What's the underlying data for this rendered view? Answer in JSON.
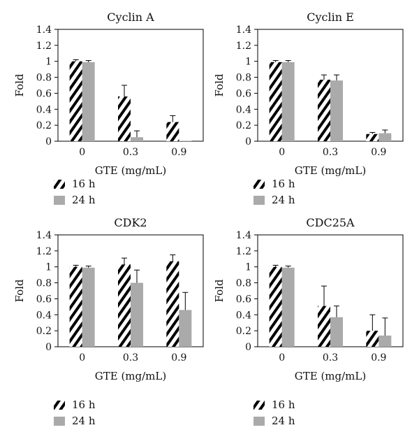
{
  "chart_data": [
    {
      "type": "bar",
      "title": "Cyclin A",
      "xlabel": "GTE (mg/mL)",
      "ylabel": "Fold",
      "ylim": [
        0,
        1.4
      ],
      "yticks": [
        "0",
        "0.2",
        "0.4",
        "0.6",
        "0.8",
        "1",
        "1.2",
        "1.4"
      ],
      "categories": [
        "0",
        "0.3",
        "0.9"
      ],
      "series": [
        {
          "name": "16 h",
          "pattern": "hatch",
          "values": [
            1.0,
            0.56,
            0.24
          ],
          "errors": [
            0.02,
            0.14,
            0.08
          ]
        },
        {
          "name": "24 h",
          "color": "#aaaaaa",
          "values": [
            0.99,
            0.05,
            0.005
          ],
          "errors": [
            0.02,
            0.08,
            0.0
          ]
        }
      ],
      "legend": [
        {
          "label": "16 h",
          "pattern": "hatch"
        },
        {
          "label": "24 h",
          "color": "#aaaaaa"
        }
      ],
      "grid": false
    },
    {
      "type": "bar",
      "title": "Cyclin E",
      "xlabel": "GTE (mg/mL)",
      "ylabel": "Fold",
      "ylim": [
        0,
        1.4
      ],
      "yticks": [
        "0",
        "0.2",
        "0.4",
        "0.6",
        "0.8",
        "1",
        "1.2",
        "1.4"
      ],
      "categories": [
        "0",
        "0.3",
        "0.9"
      ],
      "series": [
        {
          "name": "16 h",
          "pattern": "hatch",
          "values": [
            0.99,
            0.77,
            0.09
          ],
          "errors": [
            0.02,
            0.06,
            0.02
          ]
        },
        {
          "name": "24 h",
          "color": "#aaaaaa",
          "values": [
            0.99,
            0.76,
            0.1
          ],
          "errors": [
            0.02,
            0.07,
            0.04
          ]
        }
      ],
      "legend": [
        {
          "label": "16 h",
          "pattern": "hatch"
        },
        {
          "label": "24 h",
          "color": "#aaaaaa"
        }
      ],
      "grid": false
    },
    {
      "type": "bar",
      "title": "CDK2",
      "xlabel": "GTE (mg/mL)",
      "ylabel": "Fold",
      "ylim": [
        0,
        1.4
      ],
      "yticks": [
        "0",
        "0.2",
        "0.4",
        "0.6",
        "0.8",
        "1",
        "1.2",
        "1.4"
      ],
      "categories": [
        "0",
        "0.3",
        "0.9"
      ],
      "series": [
        {
          "name": "16 h",
          "pattern": "hatch",
          "values": [
            1.0,
            1.03,
            1.07
          ],
          "errors": [
            0.02,
            0.08,
            0.08
          ]
        },
        {
          "name": "24 h",
          "color": "#aaaaaa",
          "values": [
            0.99,
            0.8,
            0.46
          ],
          "errors": [
            0.02,
            0.16,
            0.22
          ]
        }
      ],
      "legend": [
        {
          "label": "16 h",
          "pattern": "hatch"
        },
        {
          "label": "24 h",
          "color": "#aaaaaa"
        }
      ],
      "grid": false
    },
    {
      "type": "bar",
      "title": "CDC25A",
      "xlabel": "GTE (mg/mL)",
      "ylabel": "Fold",
      "ylim": [
        0,
        1.4
      ],
      "yticks": [
        "0",
        "0.2",
        "0.4",
        "0.6",
        "0.8",
        "1",
        "1.2",
        "1.4"
      ],
      "categories": [
        "0",
        "0.3",
        "0.9"
      ],
      "series": [
        {
          "name": "16 h",
          "pattern": "hatch",
          "values": [
            1.0,
            0.51,
            0.2
          ],
          "errors": [
            0.02,
            0.25,
            0.2
          ]
        },
        {
          "name": "24 h",
          "color": "#aaaaaa",
          "values": [
            0.99,
            0.37,
            0.14
          ],
          "errors": [
            0.02,
            0.14,
            0.22
          ]
        }
      ],
      "legend": [
        {
          "label": "16 h",
          "pattern": "hatch"
        },
        {
          "label": "24 h",
          "color": "#aaaaaa"
        }
      ],
      "grid": false
    }
  ]
}
